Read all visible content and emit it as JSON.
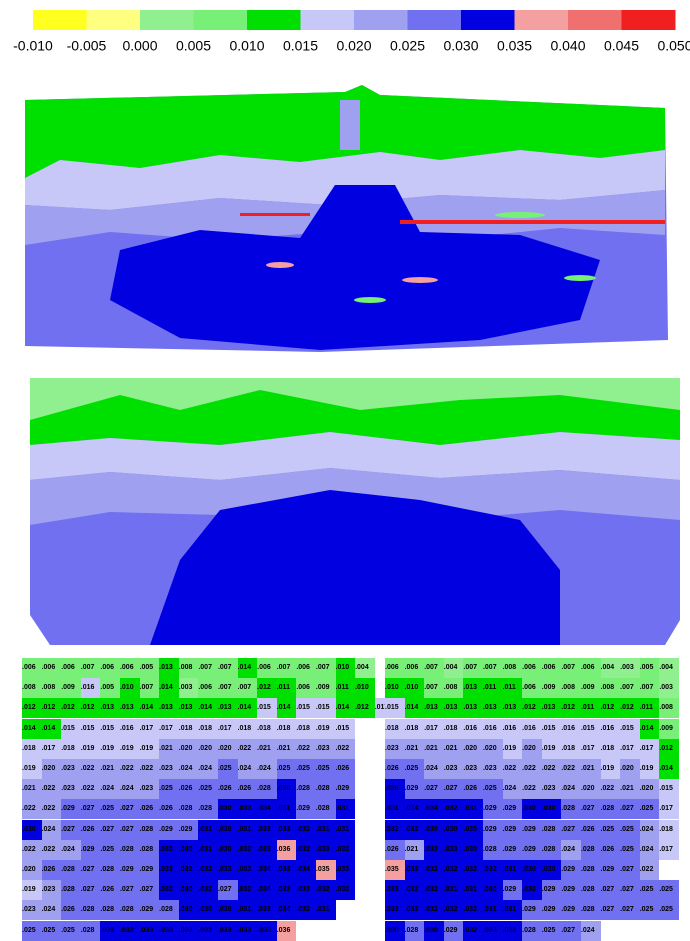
{
  "colorbar": {
    "ticks": [
      {
        "value": -0.01,
        "label": "-0.010"
      },
      {
        "value": -0.005,
        "label": "-0.005"
      },
      {
        "value": 0,
        "label": "0.000"
      },
      {
        "value": 0.005,
        "label": "0.005"
      },
      {
        "value": 0.01,
        "label": "0.010"
      },
      {
        "value": 0.015,
        "label": "0.015"
      },
      {
        "value": 0.02,
        "label": "0.020"
      },
      {
        "value": 0.025,
        "label": "0.025"
      },
      {
        "value": 0.03,
        "label": "0.030"
      },
      {
        "value": 0.035,
        "label": "0.035"
      },
      {
        "value": 0.04,
        "label": "0.040"
      },
      {
        "value": 0.045,
        "label": "0.045"
      },
      {
        "value": 0.05,
        "label": "0.050"
      }
    ],
    "colors": [
      "#ffff20",
      "#ffff80",
      "#90f090",
      "#78f078",
      "#00e000",
      "#c8c8f8",
      "#a0a0f0",
      "#7070f0",
      "#0000e0",
      "#f4a0a0",
      "#f07070",
      "#f02020"
    ]
  },
  "grid": {
    "rows": [
      {
        "left": [
          ".006",
          ".006",
          ".006",
          ".007",
          ".006",
          ".006",
          ".005",
          ".013",
          ".008",
          ".007",
          ".007",
          ".014",
          ".006",
          ".007",
          ".006",
          ".007",
          ".010",
          ".004"
        ],
        "right": [
          ".006",
          ".006",
          ".007",
          ".004",
          ".007",
          ".007",
          ".008",
          ".006",
          ".006",
          ".007",
          ".006",
          ".004",
          ".003",
          ".005",
          ".004"
        ]
      },
      {
        "left": [
          ".008",
          ".008",
          ".009",
          ".016",
          ".005",
          ".010",
          ".007",
          ".014",
          ".003",
          ".006",
          ".007",
          ".007",
          ".012",
          ".011",
          ".006",
          ".009",
          ".011",
          ".010"
        ],
        "right": [
          ".010",
          ".010",
          ".007",
          ".008",
          ".013",
          ".011",
          ".011",
          ".006",
          ".009",
          ".008",
          ".009",
          ".008",
          ".007",
          ".007",
          ".003"
        ]
      },
      {
        "left": [
          ".012",
          ".012",
          ".012",
          ".012",
          ".013",
          ".013",
          ".014",
          ".013",
          ".013",
          ".014",
          ".013",
          ".014",
          ".015",
          ".014",
          ".015",
          ".015",
          ".014",
          ".012",
          ".017"
        ],
        "right": [
          ".015",
          ".014",
          ".013",
          ".013",
          ".013",
          ".013",
          ".013",
          ".012",
          ".013",
          ".012",
          ".011",
          ".012",
          ".012",
          ".011",
          ".008"
        ]
      },
      {
        "left": [
          ".014",
          ".014",
          ".015",
          ".015",
          ".015",
          ".016",
          ".017",
          ".017",
          ".018",
          ".018",
          ".017",
          ".018",
          ".018",
          ".018",
          ".018",
          ".019",
          ".015"
        ],
        "right": [
          ".018",
          ".018",
          ".017",
          ".018",
          ".016",
          ".016",
          ".016",
          ".016",
          ".015",
          ".016",
          ".015",
          ".016",
          ".015",
          ".014",
          ".009"
        ]
      },
      {
        "left": [
          ".018",
          ".017",
          ".018",
          ".019",
          ".019",
          ".019",
          ".019",
          ".021",
          ".020",
          ".020",
          ".020",
          ".022",
          ".021",
          ".021",
          ".022",
          ".023",
          ".022"
        ],
        "right": [
          ".023",
          ".021",
          ".021",
          ".021",
          ".020",
          ".020",
          ".019",
          ".020",
          ".019",
          ".018",
          ".017",
          ".018",
          ".017",
          ".017",
          ".012"
        ]
      },
      {
        "left": [
          ".019",
          ".020",
          ".023",
          ".022",
          ".021",
          ".022",
          ".022",
          ".023",
          ".024",
          ".024",
          ".025",
          ".024",
          ".024",
          ".025",
          ".025",
          ".025",
          ".026"
        ],
        "right": [
          ".026",
          ".025",
          ".024",
          ".023",
          ".023",
          ".023",
          ".022",
          ".022",
          ".022",
          ".022",
          ".021",
          ".019",
          ".020",
          ".019",
          ".014"
        ]
      },
      {
        "left": [
          ".021",
          ".022",
          ".023",
          ".022",
          ".024",
          ".024",
          ".023",
          ".025",
          ".026",
          ".025",
          ".026",
          ".026",
          ".028",
          ".030",
          ".028",
          ".028",
          ".029"
        ],
        "right": [
          ".030",
          ".029",
          ".027",
          ".027",
          ".026",
          ".025",
          ".024",
          ".022",
          ".023",
          ".024",
          ".020",
          ".022",
          ".021",
          ".020",
          ".015"
        ]
      },
      {
        "left": [
          ".022",
          ".022",
          ".029",
          ".027",
          ".025",
          ".027",
          ".026",
          ".026",
          ".028",
          ".028",
          ".030",
          ".033",
          ".034",
          ".031",
          ".029",
          ".028",
          ".031"
        ],
        "right": [
          ".031",
          ".034",
          ".034",
          ".032",
          ".031",
          ".029",
          ".029",
          ".030",
          ".030",
          ".028",
          ".027",
          ".028",
          ".027",
          ".025",
          ".017"
        ]
      },
      {
        "left": [
          ".030",
          ".024",
          ".027",
          ".026",
          ".027",
          ".027",
          ".028",
          ".029",
          ".029",
          ".031",
          ".030",
          ".031",
          ".033",
          ".033",
          ".032",
          ".031",
          ".031"
        ],
        "right": [
          ".032",
          ".032",
          ".030",
          ".030",
          ".030",
          ".029",
          ".029",
          ".029",
          ".028",
          ".027",
          ".026",
          ".025",
          ".025",
          ".024",
          ".018"
        ]
      },
      {
        "left": [
          ".022",
          ".022",
          ".024",
          ".029",
          ".025",
          ".028",
          ".028",
          ".032",
          ".030",
          ".031",
          ".030",
          ".032",
          ".033",
          ".036",
          ".032",
          ".033",
          ".032"
        ],
        "right": [
          ".026",
          ".021",
          ".033",
          ".033",
          ".030",
          ".028",
          ".029",
          ".029",
          ".028",
          ".024",
          ".028",
          ".026",
          ".025",
          ".024",
          ".017"
        ]
      },
      {
        "left": [
          ".020",
          ".026",
          ".028",
          ".027",
          ".028",
          ".029",
          ".029",
          ".033",
          ".032",
          ".032",
          ".033",
          ".033",
          ".034",
          ".033",
          ".034",
          ".035",
          ".033"
        ],
        "right": [
          ".035",
          ".033",
          ".032",
          ".032",
          ".032",
          ".032",
          ".031",
          ".030",
          ".030",
          ".029",
          ".028",
          ".029",
          ".027",
          ".022"
        ]
      },
      {
        "left": [
          ".019",
          ".023",
          ".028",
          ".027",
          ".026",
          ".027",
          ".027",
          ".032",
          ".030",
          ".032",
          ".027",
          ".032",
          ".034",
          ".033",
          ".033",
          ".032",
          ".032"
        ],
        "right": [
          ".033",
          ".032",
          ".032",
          ".031",
          ".031",
          ".030",
          ".029",
          ".030",
          ".029",
          ".029",
          ".028",
          ".027",
          ".027",
          ".025",
          ".025"
        ]
      },
      {
        "left": [
          ".023",
          ".024",
          ".026",
          ".028",
          ".028",
          ".028",
          ".029",
          ".028",
          ".030",
          ".030",
          ".030",
          ".031",
          ".033",
          ".034",
          ".032",
          ".031"
        ],
        "right": [
          ".033",
          ".033",
          ".032",
          ".032",
          ".032",
          ".031",
          ".031",
          ".029",
          ".029",
          ".029",
          ".028",
          ".027",
          ".027",
          ".025",
          ".025"
        ]
      },
      {
        "left": [
          ".025",
          ".025",
          ".025",
          ".028",
          ".033",
          ".032",
          ".033",
          ".033",
          ".033",
          ".032",
          ".033",
          ".033",
          ".033",
          ".036"
        ],
        "right": [
          ".030",
          ".028",
          ".030",
          ".029",
          ".032",
          ".033",
          ".033",
          ".028",
          ".025",
          ".027",
          ".024"
        ]
      }
    ]
  }
}
